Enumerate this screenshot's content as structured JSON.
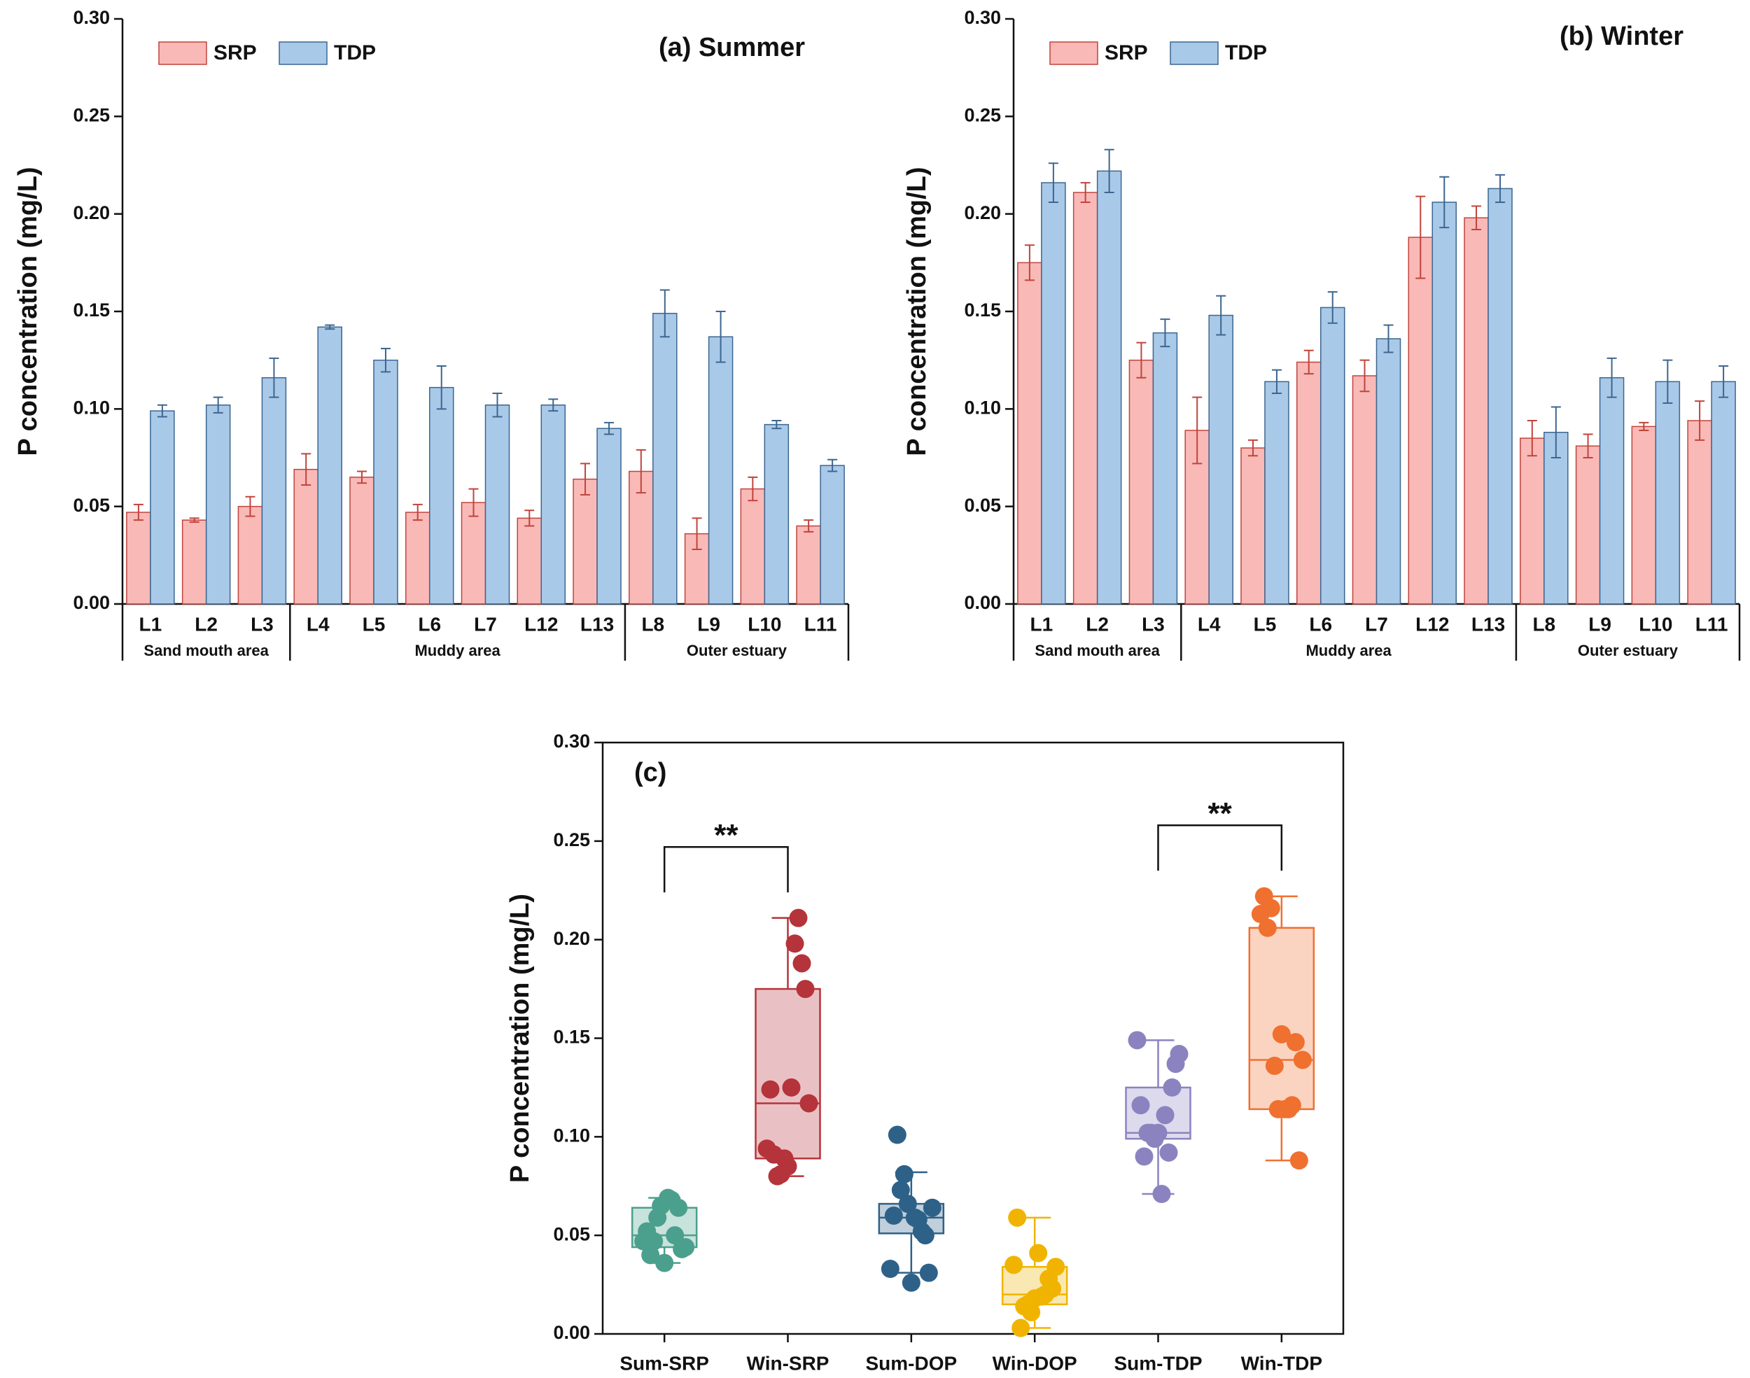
{
  "chart_data": [
    {
      "type": "bar",
      "title": "(a)  Summer",
      "y_label": "P concentration (mg/L)",
      "legend": "upper left",
      "groups": [
        {
          "label": "Sand mouth area",
          "categories": [
            "L1",
            "L2",
            "L3"
          ]
        },
        {
          "label": "Muddy area",
          "categories": [
            "L4",
            "L5",
            "L6",
            "L7",
            "L12",
            "L13"
          ]
        },
        {
          "label": "Outer estuary",
          "categories": [
            "L8",
            "L9",
            "L10",
            "L11"
          ]
        }
      ],
      "series": [
        {
          "name": "SRP",
          "color": "#f9b9b7",
          "edge_color": "#c0443c",
          "values": [
            0.047,
            0.043,
            0.05,
            0.069,
            0.065,
            0.047,
            0.052,
            0.044,
            0.064,
            0.068,
            0.036,
            0.059,
            0.04
          ],
          "errors": [
            0.004,
            0.001,
            0.005,
            0.008,
            0.003,
            0.004,
            0.007,
            0.004,
            0.008,
            0.011,
            0.008,
            0.006,
            0.003
          ]
        },
        {
          "name": "TDP",
          "color": "#a9c9e8",
          "edge_color": "#3c6690",
          "values": [
            0.099,
            0.102,
            0.116,
            0.142,
            0.125,
            0.111,
            0.102,
            0.102,
            0.09,
            0.149,
            0.137,
            0.092,
            0.071
          ],
          "errors": [
            0.003,
            0.004,
            0.01,
            0.001,
            0.006,
            0.011,
            0.006,
            0.003,
            0.003,
            0.012,
            0.013,
            0.002,
            0.003
          ]
        }
      ],
      "ylim": [
        0,
        0.3
      ],
      "yticks": [
        {
          "value": 0,
          "label": "0.00"
        },
        {
          "value": 0.05,
          "label": "0.05"
        },
        {
          "value": 0.1,
          "label": "0.10"
        },
        {
          "value": 0.15,
          "label": "0.15"
        },
        {
          "value": 0.2,
          "label": "0.20"
        },
        {
          "value": 0.25,
          "label": "0.25"
        },
        {
          "value": 0.3,
          "label": "0.30"
        }
      ]
    },
    {
      "type": "bar",
      "title": "(b)  Winter",
      "y_label": "P concentration (mg/L)",
      "legend": "upper left",
      "groups": [
        {
          "label": "Sand mouth area",
          "categories": [
            "L1",
            "L2",
            "L3"
          ]
        },
        {
          "label": "Muddy area",
          "categories": [
            "L4",
            "L5",
            "L6",
            "L7",
            "L12",
            "L13"
          ]
        },
        {
          "label": "Outer estuary",
          "categories": [
            "L8",
            "L9",
            "L10",
            "L11"
          ]
        }
      ],
      "series": [
        {
          "name": "SRP",
          "color": "#f9b9b7",
          "edge_color": "#c0443c",
          "values": [
            0.175,
            0.211,
            0.125,
            0.089,
            0.08,
            0.124,
            0.117,
            0.188,
            0.198,
            0.085,
            0.081,
            0.091,
            0.094
          ],
          "errors": [
            0.009,
            0.005,
            0.009,
            0.017,
            0.004,
            0.006,
            0.008,
            0.021,
            0.006,
            0.009,
            0.006,
            0.002,
            0.01
          ]
        },
        {
          "name": "TDP",
          "color": "#a9c9e8",
          "edge_color": "#3c6690",
          "values": [
            0.216,
            0.222,
            0.139,
            0.148,
            0.114,
            0.152,
            0.136,
            0.206,
            0.213,
            0.088,
            0.116,
            0.114,
            0.114
          ],
          "errors": [
            0.01,
            0.011,
            0.007,
            0.01,
            0.006,
            0.008,
            0.007,
            0.013,
            0.007,
            0.013,
            0.01,
            0.011,
            0.008
          ]
        }
      ],
      "ylim": [
        0,
        0.3
      ],
      "yticks": [
        {
          "value": 0,
          "label": "0.00"
        },
        {
          "value": 0.05,
          "label": "0.05"
        },
        {
          "value": 0.1,
          "label": "0.10"
        },
        {
          "value": 0.15,
          "label": "0.15"
        },
        {
          "value": 0.2,
          "label": "0.20"
        },
        {
          "value": 0.25,
          "label": "0.25"
        },
        {
          "value": 0.3,
          "label": "0.30"
        }
      ]
    },
    {
      "type": "box",
      "title": "(c)",
      "y_label": "P concentration (mg/L)",
      "categories": [
        "Sum-SRP",
        "Win-SRP",
        "Sum-DOP",
        "Win-DOP",
        "Sum-TDP",
        "Win-TDP"
      ],
      "boxes": [
        {
          "color": "#4aa08c",
          "whisker_low": 0.036,
          "q1": 0.044,
          "median": 0.05,
          "q3": 0.064,
          "whisker_high": 0.069,
          "points": [
            0.047,
            0.043,
            0.05,
            0.069,
            0.065,
            0.047,
            0.052,
            0.044,
            0.064,
            0.068,
            0.036,
            0.059,
            0.04
          ]
        },
        {
          "color": "#b5333a",
          "whisker_low": 0.08,
          "q1": 0.089,
          "median": 0.117,
          "q3": 0.175,
          "whisker_high": 0.211,
          "points": [
            0.175,
            0.211,
            0.125,
            0.089,
            0.08,
            0.124,
            0.117,
            0.188,
            0.198,
            0.085,
            0.081,
            0.091,
            0.094
          ]
        },
        {
          "color": "#2e6188",
          "whisker_low": 0.031,
          "q1": 0.051,
          "median": 0.059,
          "q3": 0.066,
          "whisker_high": 0.082,
          "points": [
            0.052,
            0.059,
            0.066,
            0.073,
            0.06,
            0.064,
            0.05,
            0.058,
            0.026,
            0.081,
            0.101,
            0.033,
            0.031
          ]
        },
        {
          "color": "#f0b400",
          "whisker_low": 0.003,
          "q1": 0.015,
          "median": 0.02,
          "q3": 0.034,
          "whisker_high": 0.059,
          "points": [
            0.041,
            0.011,
            0.014,
            0.059,
            0.034,
            0.028,
            0.019,
            0.018,
            0.015,
            0.003,
            0.035,
            0.023,
            0.02
          ]
        },
        {
          "color": "#8b83c0",
          "whisker_low": 0.071,
          "q1": 0.099,
          "median": 0.102,
          "q3": 0.125,
          "whisker_high": 0.149,
          "points": [
            0.099,
            0.102,
            0.116,
            0.142,
            0.125,
            0.111,
            0.102,
            0.102,
            0.09,
            0.149,
            0.137,
            0.092,
            0.071
          ]
        },
        {
          "color": "#f07030",
          "whisker_low": 0.088,
          "q1": 0.114,
          "median": 0.139,
          "q3": 0.206,
          "whisker_high": 0.222,
          "points": [
            0.216,
            0.222,
            0.139,
            0.148,
            0.114,
            0.152,
            0.136,
            0.206,
            0.213,
            0.088,
            0.116,
            0.114,
            0.114
          ]
        }
      ],
      "annotations": [
        {
          "text": "**",
          "from": "Sum-SRP",
          "to": "Win-SRP"
        },
        {
          "text": "**",
          "from": "Sum-TDP",
          "to": "Win-TDP"
        }
      ],
      "ylim": [
        0,
        0.3
      ],
      "yticks": [
        {
          "value": 0,
          "label": "0.00"
        },
        {
          "value": 0.05,
          "label": "0.05"
        },
        {
          "value": 0.1,
          "label": "0.10"
        },
        {
          "value": 0.15,
          "label": "0.15"
        },
        {
          "value": 0.2,
          "label": "0.20"
        },
        {
          "value": 0.25,
          "label": "0.25"
        },
        {
          "value": 0.3,
          "label": "0.30"
        }
      ]
    }
  ]
}
